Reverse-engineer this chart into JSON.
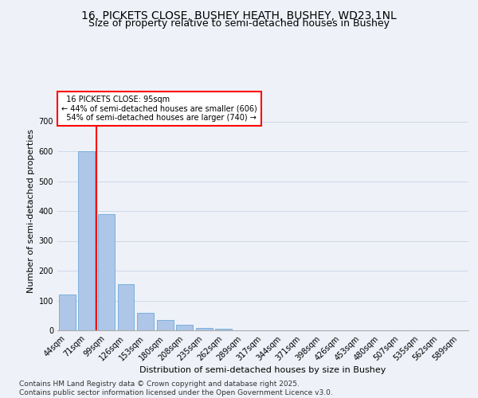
{
  "title": "16, PICKETS CLOSE, BUSHEY HEATH, BUSHEY, WD23 1NL",
  "subtitle": "Size of property relative to semi-detached houses in Bushey",
  "xlabel": "Distribution of semi-detached houses by size in Bushey",
  "ylabel": "Number of semi-detached properties",
  "categories": [
    "44sqm",
    "71sqm",
    "99sqm",
    "126sqm",
    "153sqm",
    "180sqm",
    "208sqm",
    "235sqm",
    "262sqm",
    "289sqm",
    "317sqm",
    "344sqm",
    "371sqm",
    "398sqm",
    "426sqm",
    "453sqm",
    "480sqm",
    "507sqm",
    "535sqm",
    "562sqm",
    "589sqm"
  ],
  "values": [
    120,
    600,
    390,
    155,
    60,
    35,
    18,
    8,
    5,
    0,
    0,
    0,
    0,
    0,
    0,
    0,
    0,
    0,
    0,
    0,
    0
  ],
  "bar_color": "#aec6e8",
  "bar_edge_color": "#5a9fd4",
  "property_line_x": 1.5,
  "property_label": "16 PICKETS CLOSE: 95sqm",
  "smaller_pct": 44,
  "smaller_count": 606,
  "larger_pct": 54,
  "larger_count": 740,
  "ylim": [
    0,
    800
  ],
  "yticks": [
    0,
    100,
    200,
    300,
    400,
    500,
    600,
    700
  ],
  "grid_color": "#d0d8e8",
  "background_color": "#eef2f8",
  "title_fontsize": 10,
  "subtitle_fontsize": 9,
  "axis_label_fontsize": 8,
  "tick_fontsize": 7,
  "footer_text": "Contains HM Land Registry data © Crown copyright and database right 2025.\nContains public sector information licensed under the Open Government Licence v3.0.",
  "footer_fontsize": 6.5
}
